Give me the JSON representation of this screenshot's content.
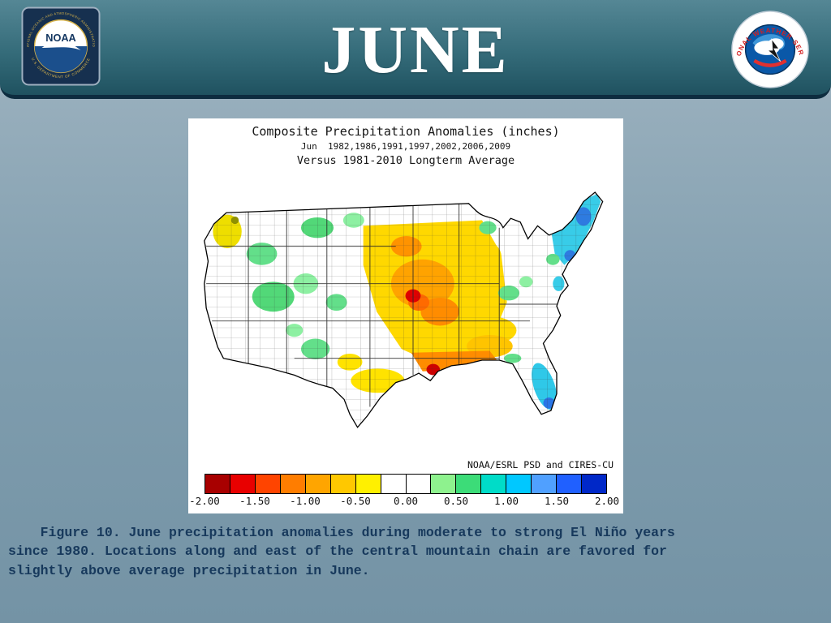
{
  "slide": {
    "title": "JUNE",
    "caption": "    Figure 10. June precipitation anomalies during moderate to strong El Niño years\nsince 1980. Locations along and east of the central mountain chain are favored for\nslightly above average precipitation in June."
  },
  "logos": {
    "noaa": {
      "acronym": "NOAA",
      "ring_top": "NATIONAL OCEANIC AND ATMOSPHERIC ADMINISTRATION",
      "ring_bottom": "U.S. DEPARTMENT OF COMMERCE"
    },
    "nws": {
      "ring_text": "NATIONAL WEATHER SERVICE"
    }
  },
  "figure": {
    "title": "Composite Precipitation Anomalies (inches)",
    "subtitle1": "Jun  1982,1986,1991,1997,2002,2006,2009",
    "subtitle2": "Versus 1981-2010 Longterm Average",
    "credit": "NOAA/ESRL PSD and CIRES-CU",
    "colorbar": {
      "tick_labels": [
        "-2.00",
        "-1.50",
        "-1.00",
        "-0.50",
        "0.00",
        "0.50",
        "1.00",
        "1.50",
        "2.00"
      ],
      "colors": [
        "#a80000",
        "#e80000",
        "#ff4400",
        "#ff7d00",
        "#ffa500",
        "#ffc800",
        "#fff000",
        "#ffffff",
        "#ffffff",
        "#8ef28e",
        "#3cdc78",
        "#00dcc8",
        "#00c8ff",
        "#50a0ff",
        "#2060ff",
        "#0028c8"
      ],
      "value_min": -2.0,
      "value_max": 2.0
    }
  }
}
